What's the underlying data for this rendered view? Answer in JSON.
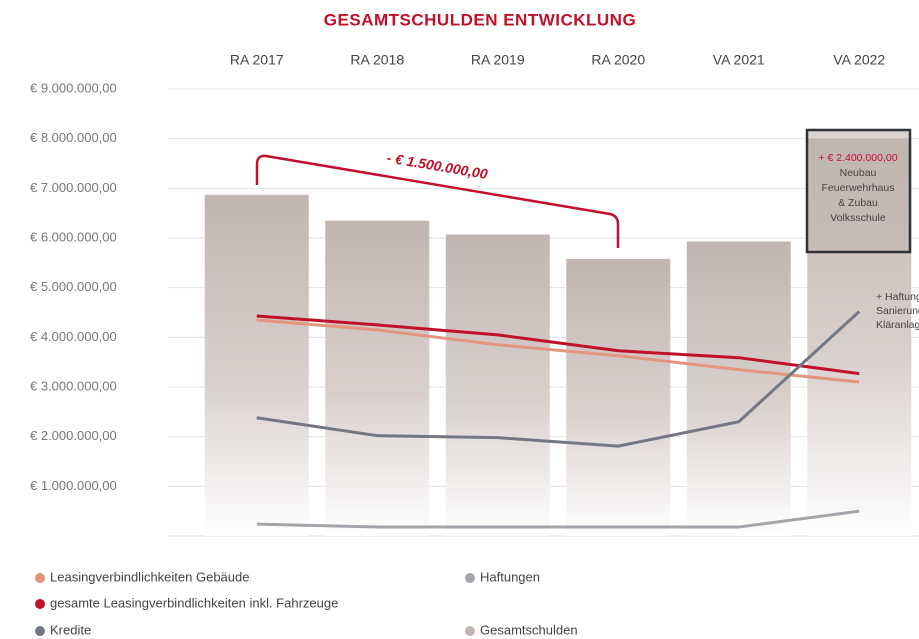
{
  "chart_data": {
    "type": "bar",
    "title": "GESAMTSCHULDEN ENTWICKLUNG",
    "categories": [
      "RA 2017",
      "RA 2018",
      "RA 2019",
      "RA 2020",
      "VA 2021",
      "VA 2022"
    ],
    "series": [
      {
        "name": "Leasingverbindlichkeiten Gebäude",
        "type": "line",
        "color": "#e3957f",
        "values": [
          4350000,
          4150000,
          3850000,
          3630000,
          3350000,
          3100000
        ]
      },
      {
        "name": "gesamte Leasingverbindlichkeiten inkl. Fahrzeuge",
        "type": "line",
        "color": "#c0102a",
        "values": [
          4430000,
          4250000,
          4050000,
          3730000,
          3590000,
          3270000
        ]
      },
      {
        "name": "Kredite",
        "type": "line",
        "color": "#737784",
        "values": [
          2380000,
          2020000,
          1980000,
          1810000,
          2300000,
          4520000
        ]
      },
      {
        "name": "Haftungen",
        "type": "line",
        "color": "#a5a4ab",
        "values": [
          240000,
          180000,
          180000,
          180000,
          180000,
          500000
        ]
      },
      {
        "name": "Gesamtschulden",
        "type": "bar",
        "color": "#c2b5b1",
        "values": [
          6870000,
          6350000,
          6070000,
          5580000,
          5930000,
          8000000
        ]
      }
    ],
    "ylim": [
      0,
      9000000
    ],
    "yticks": [
      {
        "value": 1000000,
        "label": "€ 1.000.000,00"
      },
      {
        "value": 2000000,
        "label": "€ 2.000.000,00"
      },
      {
        "value": 3000000,
        "label": "€ 3.000.000,00"
      },
      {
        "value": 4000000,
        "label": "€ 4.000.000,00"
      },
      {
        "value": 5000000,
        "label": "€ 5.000.000,00"
      },
      {
        "value": 6000000,
        "label": "€ 6.000.000,00"
      },
      {
        "value": 7000000,
        "label": "€ 7.000.000,00"
      },
      {
        "value": 8000000,
        "label": "€ 8.000.000,00"
      },
      {
        "value": 9000000,
        "label": "€ 9.000.000,00"
      }
    ],
    "grid": true,
    "annotations": {
      "reduction": "- € 1.500.000,00",
      "box": [
        "+ € 2.400.000,00",
        "Neubau",
        "Feuerwehrhaus",
        "& Zubau",
        "Volksschule"
      ],
      "note": [
        "+ Haftung",
        "Sanierung",
        "Kläranlage"
      ]
    }
  }
}
